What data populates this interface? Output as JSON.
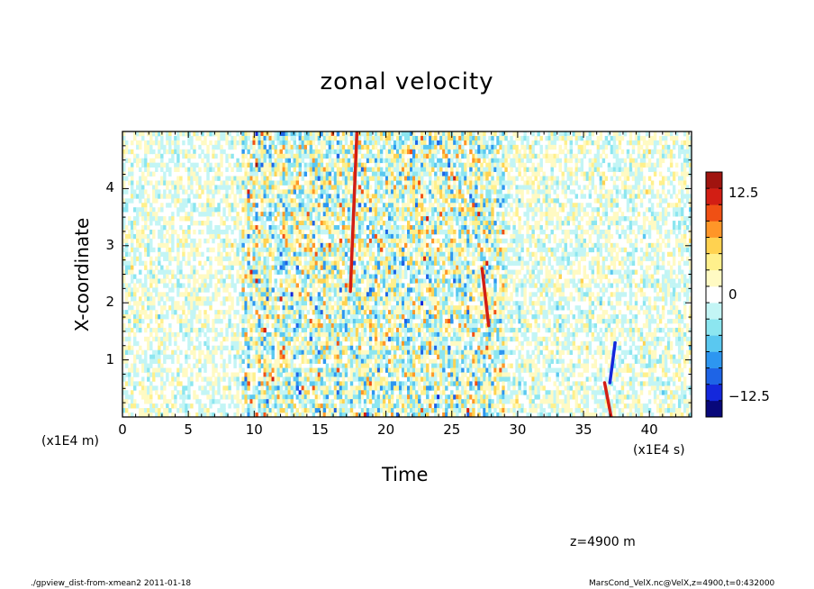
{
  "chart_data": {
    "type": "heatmap",
    "title": "zonal velocity",
    "xlabel": "Time",
    "ylabel": "X-coordinate",
    "x_unit": "(x1E4 s)",
    "y_unit": "(x1E4 m)",
    "xlim": [
      0,
      43.2
    ],
    "ylim": [
      0,
      5
    ],
    "x_ticks": [
      "0",
      "5",
      "10",
      "15",
      "20",
      "25",
      "30",
      "35",
      "40"
    ],
    "y_ticks": [
      "1",
      "2",
      "3",
      "4"
    ],
    "colorbar": {
      "range": [
        -15,
        15
      ],
      "tick_labels": [
        "12.5",
        "0",
        "−12.5"
      ],
      "colors": [
        "#08087a",
        "#1428dc",
        "#1e64e6",
        "#2d96f0",
        "#5ac8f0",
        "#8ce6f0",
        "#c3f5f5",
        "#ffffff",
        "#fffac3",
        "#fff08c",
        "#ffd250",
        "#ff9628",
        "#f05014",
        "#d21e14",
        "#a0140f"
      ]
    },
    "features": [
      {
        "kind": "positive streak",
        "t": [
          17.3,
          17.8
        ],
        "x": [
          2.2,
          5.0
        ]
      },
      {
        "kind": "positive streak",
        "t": [
          27.8,
          27.3
        ],
        "x": [
          1.6,
          2.6
        ]
      },
      {
        "kind": "positive streak",
        "t": [
          37.1,
          36.6
        ],
        "x": [
          0.0,
          0.6
        ]
      },
      {
        "kind": "negative streak",
        "t": [
          37.0,
          37.4
        ],
        "x": [
          0.6,
          1.3
        ]
      }
    ]
  },
  "annotations": {
    "z_level": "z=4900 m",
    "footer_left": "./gpview_dist-from-xmean2  2011-01-18",
    "footer_right": "MarsCond_VelX.nc@VelX,z=4900,t=0:432000"
  }
}
